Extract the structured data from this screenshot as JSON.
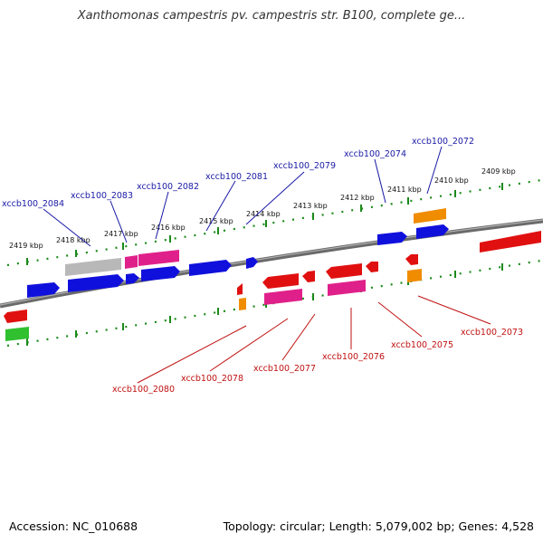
{
  "title": "Xanthomonas campestris pv. campestris str. B100, complete ge...",
  "footer": {
    "accession": "Accession: NC_010688",
    "topology": "Topology: circular; Length: 5,079,002 bp; Genes: 4,528"
  },
  "colors": {
    "forward_blue": "#1010dd",
    "reverse_red": "#e01010",
    "pink": "#e0208a",
    "gray": "#b8b8b8",
    "orange": "#f08c00",
    "green": "#30c030",
    "backbone": "#707070",
    "ticks": "#1a8a1a",
    "label_top": "#1a1aa6",
    "label_bottom": "#c01010"
  },
  "kbp_labels": [
    "2419 kbp",
    "2418 kbp",
    "2417 kbp",
    "2416 kbp",
    "2415 kbp",
    "2414 kbp",
    "2413 kbp",
    "2412 kbp",
    "2411 kbp",
    "2410 kbp",
    "2409 kbp"
  ],
  "gene_labels_top": [
    "xccb100_2084",
    "xccb100_2083",
    "xccb100_2082",
    "xccb100_2081",
    "xccb100_2079",
    "xccb100_2074",
    "xccb100_2072"
  ],
  "gene_labels_bottom": [
    "xccb100_2080",
    "xccb100_2078",
    "xccb100_2077",
    "xccb100_2076",
    "xccb100_2075",
    "xccb100_2073"
  ]
}
